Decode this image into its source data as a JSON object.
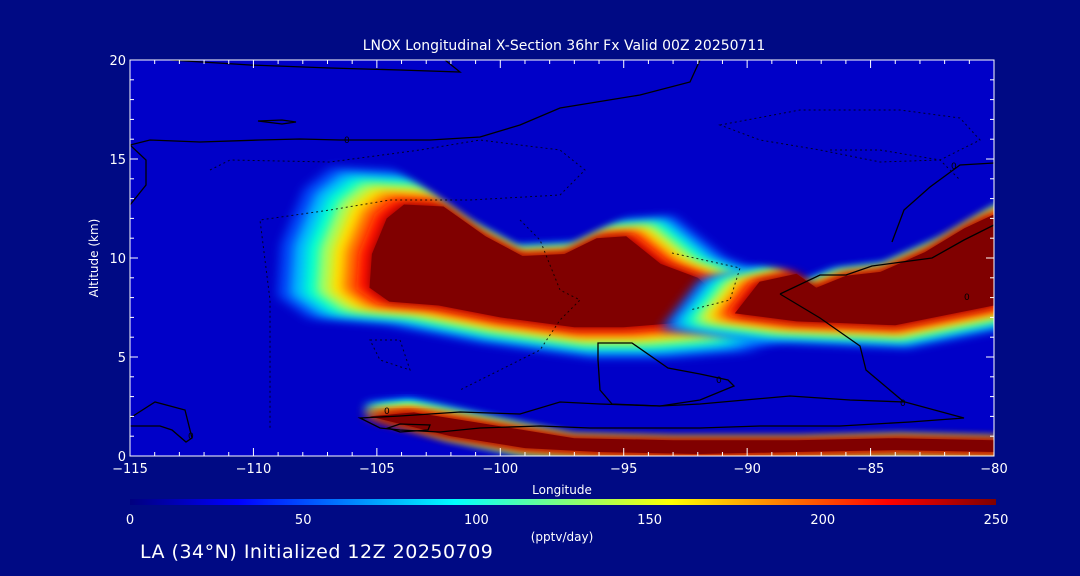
{
  "chart_data": {
    "type": "heatmap",
    "title": "LNOX Longitudinal X-Section 36hr  Fx Valid 00Z 20250711",
    "xlabel": "Longitude",
    "ylabel": "Altitude (km)",
    "xlim": [
      -115,
      -80
    ],
    "ylim": [
      0,
      20
    ],
    "x_ticks": [
      -115,
      -110,
      -105,
      -100,
      -95,
      -90,
      -85,
      -80
    ],
    "x_tick_labels": [
      "−115",
      "−110",
      "−105",
      "−100",
      "−95",
      "−90",
      "−85",
      "−80"
    ],
    "y_ticks": [
      0,
      5,
      10,
      15,
      20
    ],
    "y_tick_labels": [
      "0",
      "5",
      "10",
      "15",
      "20"
    ],
    "colorbar": {
      "min": 0,
      "max": 250,
      "ticks": [
        0,
        50,
        100,
        150,
        200,
        250
      ],
      "tick_labels": [
        "0",
        "50",
        "100",
        "150",
        "200",
        "250"
      ],
      "unit": "(pptv/day)",
      "colors": [
        "#00007f",
        "#0000ff",
        "#007fff",
        "#00ffff",
        "#7fff7f",
        "#ffff00",
        "#ff7f00",
        "#ff0000",
        "#7f0000"
      ]
    },
    "regions": [
      {
        "value": 250,
        "points": [
          [
            -105.3,
            8.5
          ],
          [
            -105.2,
            10.2
          ],
          [
            -104.6,
            12.0
          ],
          [
            -103.9,
            12.7
          ],
          [
            -102.3,
            12.6
          ],
          [
            -100.6,
            11.1
          ],
          [
            -99.1,
            10.1
          ],
          [
            -97.4,
            10.2
          ],
          [
            -96.1,
            11.0
          ],
          [
            -94.9,
            11.1
          ],
          [
            -93.5,
            9.7
          ],
          [
            -92.0,
            9.0
          ],
          [
            -91.2,
            8.1
          ],
          [
            -91.6,
            7.3
          ],
          [
            -93.0,
            6.7
          ],
          [
            -95.0,
            6.5
          ],
          [
            -97.0,
            6.5
          ],
          [
            -100.0,
            7.0
          ],
          [
            -102.5,
            7.6
          ],
          [
            -104.5,
            7.8
          ]
        ]
      },
      {
        "value": 250,
        "points": [
          [
            -90.5,
            7.2
          ],
          [
            -89.5,
            8.8
          ],
          [
            -88.0,
            9.2
          ],
          [
            -87.2,
            8.5
          ],
          [
            -86.0,
            9.1
          ],
          [
            -84.6,
            9.3
          ],
          [
            -82.8,
            10.3
          ],
          [
            -81.2,
            11.5
          ],
          [
            -80.0,
            12.2
          ],
          [
            -80.0,
            7.6
          ],
          [
            -82.0,
            7.1
          ],
          [
            -84.0,
            6.6
          ],
          [
            -86.0,
            6.7
          ],
          [
            -88.0,
            6.8
          ]
        ]
      },
      {
        "value": 250,
        "points": [
          [
            -105.3,
            2.0
          ],
          [
            -103.5,
            2.2
          ],
          [
            -101.0,
            1.7
          ],
          [
            -99.0,
            1.3
          ],
          [
            -97.0,
            0.9
          ],
          [
            -93.0,
            0.8
          ],
          [
            -88.0,
            0.8
          ],
          [
            -84.0,
            0.9
          ],
          [
            -80.0,
            0.8
          ],
          [
            -80.0,
            0.2
          ],
          [
            -84.0,
            0.3
          ],
          [
            -88.0,
            0.2
          ],
          [
            -92.0,
            0.1
          ],
          [
            -96.0,
            0.2
          ],
          [
            -99.0,
            0.4
          ],
          [
            -102.0,
            1.0
          ],
          [
            -104.0,
            1.6
          ]
        ]
      }
    ],
    "contour_labels": [
      "0"
    ]
  },
  "footer": {
    "text": "LA (34°N) Initialized 12Z 20250709"
  }
}
